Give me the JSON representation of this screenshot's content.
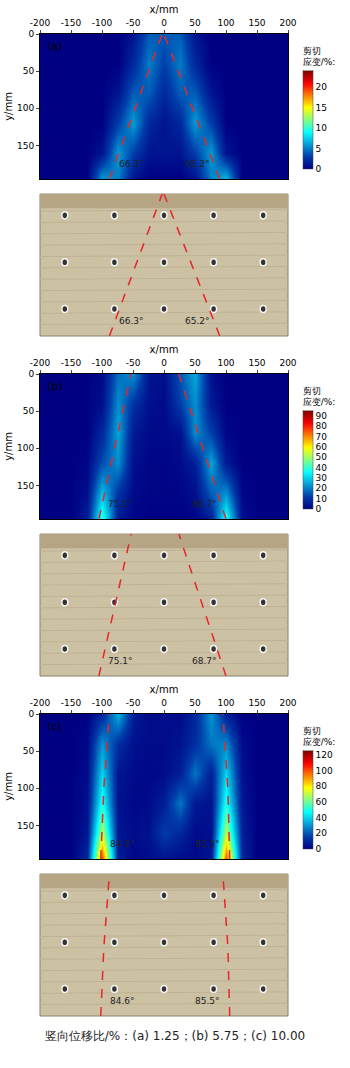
{
  "chart_data": [
    {
      "type": "heatmap",
      "label": "(a)",
      "x_label": "x/mm",
      "y_label": "y/mm",
      "x": [
        -200,
        -175,
        -150,
        -125,
        -100,
        -75,
        -50,
        -25,
        0,
        25,
        50,
        75,
        100,
        125,
        150,
        175,
        200
      ],
      "y": [
        0,
        40,
        80,
        120,
        160,
        195
      ],
      "z": [
        [
          0,
          0,
          0,
          0,
          0,
          0,
          1,
          4,
          4,
          4,
          1,
          0,
          0,
          0,
          0,
          0,
          0
        ],
        [
          0,
          0,
          0,
          0,
          0,
          0,
          2,
          5,
          3,
          5,
          2,
          0,
          0,
          0,
          0,
          0,
          0
        ],
        [
          0,
          0,
          0,
          0,
          0,
          1,
          4,
          4,
          2,
          4,
          4,
          1,
          0,
          0,
          0,
          0,
          0
        ],
        [
          0,
          0,
          0,
          0,
          0,
          3,
          6,
          2,
          1,
          2,
          6,
          3,
          0,
          0,
          0,
          0,
          0
        ],
        [
          0,
          0,
          0,
          0,
          1,
          6,
          3,
          1,
          1,
          1,
          3,
          6,
          1,
          0,
          0,
          0,
          0
        ],
        [
          0,
          0,
          0,
          0,
          6,
          5,
          1,
          0,
          0,
          0,
          1,
          5,
          7,
          0,
          0,
          0,
          0
        ]
      ],
      "xlim": [
        -200,
        200
      ],
      "xticks": [
        -200,
        -150,
        -100,
        -50,
        0,
        50,
        100,
        150,
        200
      ],
      "ylim": [
        0,
        195
      ],
      "yticks": [
        0,
        50,
        100,
        150
      ],
      "colorbar": {
        "title": [
          "剪切",
          "应变/%:"
        ],
        "range": [
          0,
          24
        ],
        "ticks": [
          0,
          5,
          10,
          15,
          20
        ]
      },
      "color": "#e8262a",
      "line_style": "dashed",
      "lines": [
        {
          "x": [
            -88,
            -3
          ],
          "y": [
            195,
            0
          ],
          "angle_label": "66.3°"
        },
        {
          "x": [
            90,
            0
          ],
          "y": [
            195,
            0
          ],
          "angle_label": "65.2°"
        }
      ]
    },
    {
      "type": "heatmap",
      "label": "(b)",
      "x_label": "x/mm",
      "y_label": "y/mm",
      "x": [
        -200,
        -175,
        -150,
        -125,
        -100,
        -75,
        -50,
        -25,
        0,
        25,
        50,
        75,
        100,
        125,
        150,
        175,
        200
      ],
      "y": [
        0,
        40,
        80,
        120,
        160,
        195
      ],
      "z": [
        [
          0,
          0,
          0,
          0,
          2,
          18,
          22,
          4,
          3,
          15,
          25,
          3,
          0,
          0,
          0,
          0,
          0
        ],
        [
          0,
          0,
          0,
          0,
          3,
          22,
          10,
          3,
          2,
          12,
          22,
          5,
          0,
          0,
          0,
          0,
          0
        ],
        [
          0,
          0,
          0,
          0,
          8,
          25,
          5,
          2,
          2,
          3,
          22,
          12,
          1,
          0,
          0,
          0,
          0
        ],
        [
          0,
          0,
          0,
          1,
          14,
          22,
          3,
          1,
          1,
          2,
          6,
          25,
          5,
          0,
          0,
          0,
          0
        ],
        [
          0,
          0,
          0,
          3,
          28,
          10,
          2,
          1,
          1,
          1,
          3,
          16,
          22,
          1,
          0,
          0,
          0
        ],
        [
          0,
          0,
          0,
          6,
          40,
          5,
          1,
          0,
          0,
          0,
          1,
          6,
          38,
          3,
          0,
          0,
          0
        ]
      ],
      "xlim": [
        -200,
        200
      ],
      "xticks": [
        -200,
        -150,
        -100,
        -50,
        0,
        50,
        100,
        150,
        200
      ],
      "ylim": [
        0,
        195
      ],
      "yticks": [
        0,
        50,
        100,
        150
      ],
      "colorbar": {
        "title": [
          "剪切",
          "应变/%:"
        ],
        "range": [
          0,
          95
        ],
        "ticks": [
          0,
          10,
          20,
          30,
          40,
          50,
          60,
          70,
          80,
          90
        ]
      },
      "color": "#e8262a",
      "line_style": "dashed",
      "lines": [
        {
          "x": [
            -105,
            -53
          ],
          "y": [
            195,
            0
          ],
          "angle_label": "75.1°"
        },
        {
          "x": [
            100,
            24
          ],
          "y": [
            195,
            0
          ],
          "angle_label": "68.7°"
        }
      ]
    },
    {
      "type": "heatmap",
      "label": "(c)",
      "x_label": "x/mm",
      "y_label": "y/mm",
      "x": [
        -200,
        -175,
        -150,
        -125,
        -100,
        -75,
        -50,
        -25,
        0,
        25,
        50,
        75,
        100,
        125,
        150,
        175,
        200
      ],
      "y": [
        0,
        40,
        80,
        120,
        160,
        195
      ],
      "z": [
        [
          0,
          0,
          0,
          0,
          10,
          35,
          8,
          3,
          3,
          3,
          10,
          30,
          8,
          0,
          0,
          0,
          0
        ],
        [
          0,
          0,
          0,
          2,
          30,
          12,
          4,
          3,
          3,
          5,
          12,
          25,
          28,
          3,
          0,
          0,
          0
        ],
        [
          0,
          0,
          0,
          3,
          40,
          6,
          3,
          2,
          3,
          8,
          25,
          8,
          40,
          4,
          0,
          0,
          0
        ],
        [
          0,
          0,
          0,
          4,
          50,
          5,
          2,
          3,
          8,
          25,
          6,
          5,
          50,
          6,
          0,
          0,
          0
        ],
        [
          0,
          0,
          0,
          6,
          70,
          6,
          3,
          5,
          15,
          10,
          3,
          4,
          70,
          8,
          0,
          0,
          0
        ],
        [
          0,
          0,
          0,
          10,
          100,
          8,
          2,
          3,
          5,
          3,
          2,
          6,
          100,
          10,
          0,
          0,
          0
        ]
      ],
      "xlim": [
        -200,
        200
      ],
      "xticks": [
        -200,
        -150,
        -100,
        -50,
        0,
        50,
        100,
        150,
        200
      ],
      "ylim": [
        0,
        195
      ],
      "yticks": [
        0,
        50,
        100,
        150
      ],
      "colorbar": {
        "title": [
          "剪切",
          "应变/%:"
        ],
        "range": [
          0,
          125
        ],
        "ticks": [
          0,
          20,
          40,
          60,
          80,
          100,
          120
        ]
      },
      "color": "#e8262a",
      "line_style": "dashed",
      "lines": [
        {
          "x": [
            -102,
            -97,
            -88
          ],
          "y": [
            195,
            100,
            0
          ],
          "angle_label": "84.6°"
        },
        {
          "x": [
            106,
            103,
            95
          ],
          "y": [
            195,
            100,
            0
          ],
          "angle_label": "85.5°"
        }
      ]
    }
  ],
  "caption": "竖向位移比/%：(a) 1.25；(b) 5.75；(c) 10.00"
}
